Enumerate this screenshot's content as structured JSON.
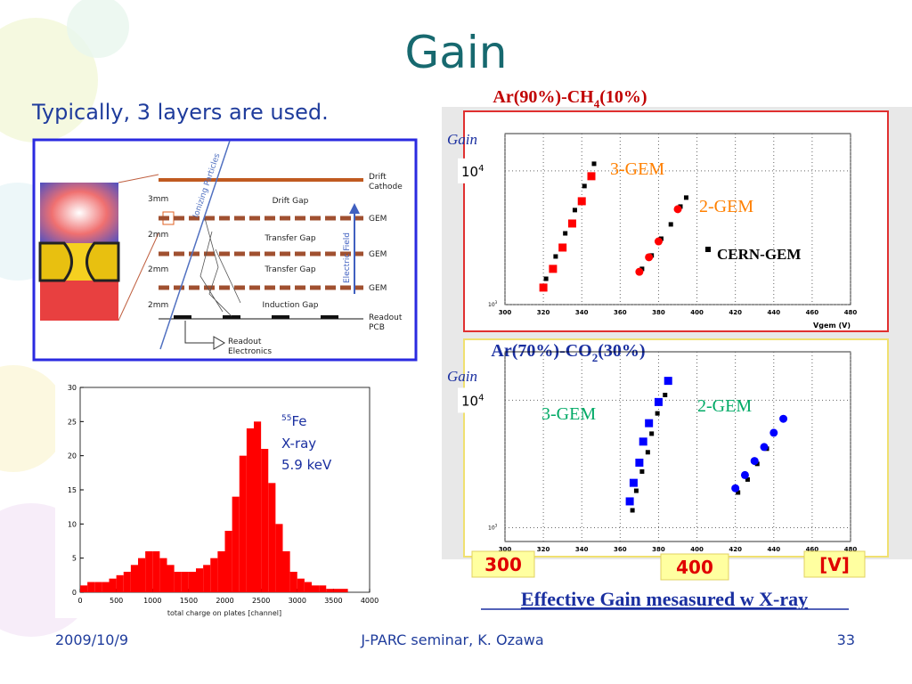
{
  "title": "Gain",
  "subtitle": "Typically, 3 layers are used.",
  "diagram": {
    "particle_label": "Ionizing Particles",
    "field_label": "Electric Field",
    "right_labels": [
      "Drift",
      "Cathode",
      "GEM",
      "GEM",
      "GEM",
      "Readout",
      "PCB"
    ],
    "gaps": [
      "Drift Gap",
      "Transfer Gap",
      "Transfer Gap",
      "Induction Gap"
    ],
    "dims": [
      "3mm",
      "2mm",
      "2mm",
      "2mm"
    ],
    "electronics": [
      "Readout",
      "Electronics"
    ]
  },
  "histogram": {
    "type": "histogram",
    "xlabel": "total charge on plates [channel]",
    "color": "#ff0000",
    "bins": [
      0,
      100,
      200,
      300,
      400,
      500,
      600,
      700,
      800,
      900,
      1000,
      1100,
      1200,
      1300,
      1400,
      1500,
      1600,
      1700,
      1800,
      1900,
      2000,
      2100,
      2200,
      2300,
      2400,
      2500,
      2600,
      2700,
      2800,
      2900,
      3000,
      3100,
      3200,
      3300,
      3400,
      3500,
      3600,
      3700,
      3800,
      3900,
      4000
    ],
    "values": [
      1,
      1.5,
      1.5,
      1.5,
      2,
      2.5,
      3,
      4,
      5,
      6,
      6,
      5,
      4,
      3,
      3,
      3,
      3.5,
      4,
      5,
      6,
      9,
      14,
      20,
      24,
      25,
      21,
      16,
      10,
      6,
      3,
      2,
      1.5,
      1,
      1,
      0.5,
      0.5,
      0.5,
      0,
      0,
      0
    ],
    "xlim": [
      0,
      4000
    ],
    "xticks": [
      0,
      500,
      1000,
      1500,
      2000,
      2500,
      3000,
      3500,
      4000
    ],
    "ylim": [
      0,
      30
    ],
    "yticks": [
      0,
      5,
      10,
      15,
      20,
      25,
      30
    ],
    "annotation": {
      "sup": "55",
      "text": "Fe",
      "lines": [
        "X-ray",
        "5.9 keV"
      ]
    }
  },
  "gain_plots": [
    {
      "type": "scatter",
      "title": [
        "Ar(90%)-CH",
        "4",
        "(10%)"
      ],
      "ylabel": "Gain",
      "xlabel": "Vgem (V)",
      "log_y": true,
      "xlim": [
        300,
        480
      ],
      "xticks": [
        300,
        320,
        340,
        360,
        380,
        400,
        420,
        440,
        460,
        480
      ],
      "ylim": [
        1000,
        19000
      ],
      "yticks": [
        {
          "value": 1000,
          "label": "10",
          "exp": "3"
        },
        {
          "value": 10000,
          "label": "10",
          "exp": "4"
        }
      ],
      "label_color": "#ff8000",
      "series": [
        {
          "name": "3-GEM",
          "color": "#ff0000",
          "marker": "square",
          "x": [
            320,
            325,
            330,
            335,
            340,
            345
          ],
          "values": [
            1340,
            1850,
            2670,
            4040,
            5930,
            9120
          ]
        },
        {
          "name": "2-GEM",
          "color": "#ff0000",
          "marker": "circle",
          "x": [
            370,
            375,
            380,
            390
          ],
          "values": [
            1760,
            2260,
            2970,
            5170
          ]
        }
      ],
      "reference": {
        "name": "CERN-GEM",
        "color": "#000000",
        "groups": [
          {
            "x": [
              320,
              325,
              330,
              335,
              340,
              345
            ],
            "values": [
              1560,
              2290,
              3410,
              5090,
              7700,
              11300
            ]
          },
          {
            "x": [
              370,
              375,
              380,
              385,
              390,
              393
            ],
            "values": [
              1850,
              2330,
              3110,
              3980,
              5410,
              6310
            ]
          }
        ]
      }
    },
    {
      "type": "scatter",
      "title": [
        "Ar(70%)-CO",
        "2",
        "(30%)"
      ],
      "ylabel": "Gain",
      "log_y": true,
      "xlim": [
        300,
        480
      ],
      "xticks": [
        300,
        320,
        340,
        360,
        380,
        400,
        420,
        440,
        460,
        480
      ],
      "ylim": [
        780,
        24000
      ],
      "yticks": [
        {
          "value": 1000,
          "label": "10",
          "exp": "3"
        },
        {
          "value": 10000,
          "label": "10",
          "exp": "4"
        }
      ],
      "label_color": "#00aa66",
      "series": [
        {
          "name": "3-GEM",
          "color": "#0000ff",
          "marker": "square",
          "x": [
            365,
            367,
            370,
            372,
            375,
            380,
            385
          ],
          "values": [
            1610,
            2250,
            3240,
            4740,
            6610,
            9690,
            14200
          ]
        },
        {
          "name": "2-GEM",
          "color": "#0000ff",
          "marker": "circle",
          "x": [
            420,
            425,
            430,
            435,
            440,
            445
          ],
          "values": [
            2040,
            2590,
            3340,
            4300,
            5560,
            7160
          ]
        }
      ],
      "reference": {
        "color": "#000000",
        "groups": [
          {
            "x": [
              365,
              367,
              370,
              373,
              375,
              378,
              382
            ],
            "values": [
              1370,
              1950,
              2760,
              3910,
              5470,
              7890,
              11000
            ]
          },
          {
            "x": [
              420,
              425,
              430,
              435
            ],
            "values": [
              1890,
              2390,
              3170,
              4170
            ]
          }
        ]
      }
    }
  ],
  "callouts": [
    "300",
    "400",
    "[V]"
  ],
  "caption": "Effective Gain mesasured w X-ray",
  "footer": {
    "date": "2009/10/9",
    "center": "J-PARC seminar, K. Ozawa",
    "page": "33"
  }
}
